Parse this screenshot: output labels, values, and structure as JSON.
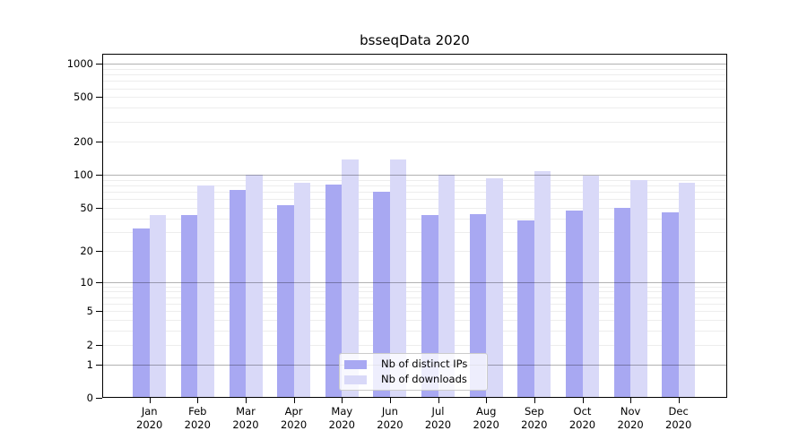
{
  "chart_data": {
    "type": "bar",
    "title": "bsseqData 2020",
    "x_categories": [
      "Jan",
      "Feb",
      "Mar",
      "Apr",
      "May",
      "Jun",
      "Jul",
      "Aug",
      "Sep",
      "Oct",
      "Nov",
      "Dec"
    ],
    "x_sub_label": "2020",
    "series": [
      {
        "name": "Nb of distinct IPs",
        "color": "#a8a8f2",
        "values": [
          32,
          43,
          73,
          53,
          82,
          70,
          43,
          44,
          38,
          47,
          50,
          45
        ]
      },
      {
        "name": "Nb of downloads",
        "color": "#d9d9f8",
        "values": [
          43,
          80,
          100,
          85,
          136,
          136,
          99,
          93,
          107,
          98,
          90,
          84
        ]
      }
    ],
    "y_axis": {
      "scale": "log10(value+1)",
      "ticks": [
        0,
        1,
        2,
        5,
        10,
        20,
        50,
        100,
        200,
        500,
        1000
      ],
      "range": [
        0,
        1230
      ]
    },
    "grid": {
      "on": true,
      "major": [
        1,
        10,
        100,
        1000
      ],
      "minor": [
        2,
        3,
        4,
        5,
        6,
        7,
        8,
        9,
        20,
        30,
        40,
        50,
        60,
        70,
        80,
        90,
        200,
        300,
        400,
        500,
        600,
        700,
        800,
        900
      ]
    },
    "legend": {
      "position": "bottom-center",
      "entries": [
        "Nb of distinct IPs",
        "Nb of downloads"
      ]
    }
  }
}
